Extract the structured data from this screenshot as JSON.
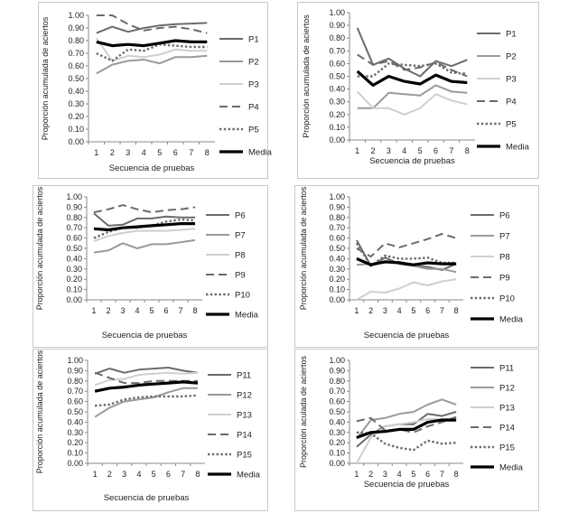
{
  "chart_data": [
    {
      "type": "line",
      "xlabel": "Secuencia de pruebas",
      "ylabel": "Proporción acumulada de aciertos",
      "ylim": [
        0,
        1
      ],
      "yticks": [
        "0.00",
        "0.10",
        "0.20",
        "0.30",
        "0.40",
        "0.50",
        "0.60",
        "0.70",
        "0.80",
        "0.90",
        "1.00"
      ],
      "categories": [
        "1",
        "2",
        "3",
        "4",
        "5",
        "6",
        "7",
        "8"
      ],
      "legend_position": "right",
      "series": [
        {
          "name": "P1",
          "color": "#6b6b6b",
          "style": "solid",
          "values": [
            0.86,
            0.91,
            0.87,
            0.9,
            0.92,
            0.93,
            0.935,
            0.94
          ]
        },
        {
          "name": "P2",
          "color": "#9a9a9a",
          "style": "solid",
          "values": [
            0.54,
            0.61,
            0.64,
            0.65,
            0.62,
            0.67,
            0.67,
            0.68
          ]
        },
        {
          "name": "P3",
          "color": "#cfcfcf",
          "style": "solid",
          "values": [
            0.82,
            0.64,
            0.68,
            0.67,
            0.69,
            0.73,
            0.72,
            0.72
          ]
        },
        {
          "name": "P4",
          "color": "#6b6b6b",
          "style": "dash",
          "values": [
            1.0,
            1.0,
            0.93,
            0.88,
            0.9,
            0.91,
            0.89,
            0.86
          ]
        },
        {
          "name": "P5",
          "color": "#6b6b6b",
          "style": "dot",
          "values": [
            0.7,
            0.64,
            0.73,
            0.72,
            0.77,
            0.76,
            0.75,
            0.75
          ]
        },
        {
          "name": "Media",
          "color": "#000000",
          "style": "bold",
          "values": [
            0.79,
            0.76,
            0.77,
            0.76,
            0.78,
            0.8,
            0.79,
            0.79
          ]
        }
      ]
    },
    {
      "type": "line",
      "xlabel": "Secuencia de pruebas",
      "ylabel": "Proporción acumulada de aciertos",
      "ylim": [
        0,
        1
      ],
      "yticks": [
        "0.00",
        "0.10",
        "0.20",
        "0.30",
        "0.40",
        "0.50",
        "0.60",
        "0.70",
        "0.80",
        "0.90",
        "1.00"
      ],
      "categories": [
        "1",
        "2",
        "3",
        "4",
        "5",
        "6",
        "7",
        "8"
      ],
      "legend_position": "right",
      "series": [
        {
          "name": "P1",
          "color": "#6b6b6b",
          "style": "solid",
          "values": [
            0.88,
            0.59,
            0.64,
            0.56,
            0.5,
            0.62,
            0.58,
            0.63
          ]
        },
        {
          "name": "P2",
          "color": "#9a9a9a",
          "style": "solid",
          "values": [
            0.25,
            0.25,
            0.37,
            0.36,
            0.35,
            0.43,
            0.38,
            0.37
          ]
        },
        {
          "name": "P3",
          "color": "#cfcfcf",
          "style": "solid",
          "values": [
            0.38,
            0.25,
            0.25,
            0.2,
            0.25,
            0.36,
            0.31,
            0.28
          ]
        },
        {
          "name": "P4",
          "color": "#6b6b6b",
          "style": "dash",
          "values": [
            0.67,
            0.59,
            0.62,
            0.55,
            0.57,
            0.61,
            0.55,
            0.5
          ]
        },
        {
          "name": "P5",
          "color": "#6b6b6b",
          "style": "dot",
          "values": [
            0.5,
            0.5,
            0.6,
            0.59,
            0.58,
            0.6,
            0.53,
            0.52
          ]
        },
        {
          "name": "Media",
          "color": "#000000",
          "style": "bold",
          "values": [
            0.54,
            0.43,
            0.5,
            0.46,
            0.44,
            0.51,
            0.46,
            0.45
          ]
        }
      ]
    },
    {
      "type": "line",
      "xlabel": "Secuencia de pruebas",
      "ylabel": "Proporción acumulada de aciertos",
      "ylim": [
        0,
        1
      ],
      "yticks": [
        "0.00",
        "0.10",
        "0.20",
        "0.30",
        "0.40",
        "0.50",
        "0.60",
        "0.70",
        "0.80",
        "0.90",
        "1.00"
      ],
      "categories": [
        "1",
        "2",
        "3",
        "4",
        "5",
        "6",
        "7",
        "8"
      ],
      "legend_position": "right",
      "series": [
        {
          "name": "P6",
          "color": "#6b6b6b",
          "style": "solid",
          "values": [
            0.84,
            0.72,
            0.73,
            0.79,
            0.79,
            0.81,
            0.8,
            0.8
          ]
        },
        {
          "name": "P7",
          "color": "#9a9a9a",
          "style": "solid",
          "values": [
            0.46,
            0.48,
            0.55,
            0.5,
            0.54,
            0.54,
            0.56,
            0.58
          ]
        },
        {
          "name": "P8",
          "color": "#cfcfcf",
          "style": "solid",
          "values": [
            0.57,
            0.62,
            0.65,
            0.67,
            0.67,
            0.67,
            0.68,
            0.69
          ]
        },
        {
          "name": "P9",
          "color": "#6b6b6b",
          "style": "dash",
          "values": [
            0.85,
            0.88,
            0.92,
            0.88,
            0.85,
            0.87,
            0.88,
            0.9
          ]
        },
        {
          "name": "P10",
          "color": "#6b6b6b",
          "style": "dot",
          "values": [
            0.6,
            0.66,
            0.7,
            0.7,
            0.72,
            0.76,
            0.78,
            0.77
          ]
        },
        {
          "name": "Media",
          "color": "#000000",
          "style": "bold",
          "values": [
            0.69,
            0.68,
            0.7,
            0.71,
            0.72,
            0.73,
            0.74,
            0.74
          ]
        }
      ]
    },
    {
      "type": "line",
      "xlabel": "Secuencia de pruebas",
      "ylabel": "Proporción acumulada de aciertos",
      "ylim": [
        0,
        1
      ],
      "yticks": [
        "0.00",
        "0.10",
        "0.20",
        "0.30",
        "0.40",
        "0.50",
        "0.60",
        "0.70",
        "0.80",
        "0.90",
        "1.00"
      ],
      "categories": [
        "1",
        "2",
        "3",
        "4",
        "5",
        "6",
        "7",
        "8"
      ],
      "legend_position": "right",
      "series": [
        {
          "name": "P6",
          "color": "#6b6b6b",
          "style": "solid",
          "values": [
            0.58,
            0.33,
            0.41,
            0.35,
            0.33,
            0.32,
            0.29,
            0.35
          ]
        },
        {
          "name": "P7",
          "color": "#9a9a9a",
          "style": "solid",
          "values": [
            0.34,
            0.35,
            0.36,
            0.37,
            0.33,
            0.3,
            0.3,
            0.27
          ]
        },
        {
          "name": "P8",
          "color": "#cfcfcf",
          "style": "solid",
          "values": [
            0.0,
            0.08,
            0.07,
            0.11,
            0.17,
            0.14,
            0.18,
            0.2
          ]
        },
        {
          "name": "P9",
          "color": "#6b6b6b",
          "style": "dash",
          "values": [
            0.5,
            0.42,
            0.55,
            0.51,
            0.55,
            0.59,
            0.64,
            0.6
          ]
        },
        {
          "name": "P10",
          "color": "#6b6b6b",
          "style": "dot",
          "values": [
            0.55,
            0.33,
            0.43,
            0.4,
            0.4,
            0.41,
            0.36,
            0.36
          ]
        },
        {
          "name": "Media",
          "color": "#000000",
          "style": "bold",
          "values": [
            0.4,
            0.34,
            0.37,
            0.36,
            0.34,
            0.36,
            0.35,
            0.35
          ]
        }
      ]
    },
    {
      "type": "line",
      "xlabel": "Secuencia de pruebas",
      "ylabel": "Proporción acumulada de aciertos",
      "ylim": [
        0,
        1
      ],
      "yticks": [
        "0.00",
        "0.10",
        "0.20",
        "0.30",
        "0.40",
        "0.50",
        "0.60",
        "0.70",
        "0.80",
        "0.90",
        "1.00"
      ],
      "categories": [
        "1",
        "2",
        "3",
        "4",
        "5",
        "6",
        "7",
        "8"
      ],
      "legend_position": "right",
      "series": [
        {
          "name": "P11",
          "color": "#6b6b6b",
          "style": "solid",
          "values": [
            0.87,
            0.92,
            0.88,
            0.91,
            0.92,
            0.93,
            0.9,
            0.88
          ]
        },
        {
          "name": "P12",
          "color": "#9a9a9a",
          "style": "solid",
          "values": [
            0.45,
            0.54,
            0.6,
            0.62,
            0.64,
            0.69,
            0.73,
            0.73
          ]
        },
        {
          "name": "P13",
          "color": "#cfcfcf",
          "style": "solid",
          "values": [
            0.76,
            0.81,
            0.82,
            0.86,
            0.87,
            0.88,
            0.87,
            0.88
          ]
        },
        {
          "name": "P14",
          "color": "#6b6b6b",
          "style": "dash",
          "values": [
            0.88,
            0.83,
            0.78,
            0.78,
            0.8,
            0.8,
            0.8,
            0.8
          ]
        },
        {
          "name": "P15",
          "color": "#6b6b6b",
          "style": "dot",
          "values": [
            0.56,
            0.57,
            0.62,
            0.64,
            0.65,
            0.65,
            0.65,
            0.66
          ]
        },
        {
          "name": "Media",
          "color": "#000000",
          "style": "bold",
          "values": [
            0.7,
            0.73,
            0.74,
            0.76,
            0.77,
            0.78,
            0.79,
            0.78
          ]
        }
      ]
    },
    {
      "type": "line",
      "xlabel": "Secuencia de pruebas",
      "ylabel": "Proporción aculada de aciertos",
      "ylim": [
        0,
        1
      ],
      "yticks": [
        "0.00",
        "0.10",
        "0.20",
        "0.30",
        "0.40",
        "0.50",
        "0.60",
        "0.70",
        "0.80",
        "0.90",
        "1.00"
      ],
      "categories": [
        "1",
        "2",
        "3",
        "4",
        "5",
        "6",
        "7",
        "8"
      ],
      "legend_position": "right",
      "series": [
        {
          "name": "P11",
          "color": "#6b6b6b",
          "style": "solid",
          "values": [
            0.16,
            0.28,
            0.36,
            0.38,
            0.38,
            0.48,
            0.46,
            0.5
          ]
        },
        {
          "name": "P12",
          "color": "#9a9a9a",
          "style": "solid",
          "values": [
            0.24,
            0.42,
            0.44,
            0.48,
            0.5,
            0.57,
            0.62,
            0.57
          ]
        },
        {
          "name": "P13",
          "color": "#cfcfcf",
          "style": "solid",
          "values": [
            0.0,
            0.25,
            0.36,
            0.38,
            0.4,
            0.43,
            0.43,
            0.44
          ]
        },
        {
          "name": "P14",
          "color": "#6b6b6b",
          "style": "dash",
          "values": [
            0.41,
            0.44,
            0.32,
            0.33,
            0.3,
            0.36,
            0.4,
            0.45
          ]
        },
        {
          "name": "P15",
          "color": "#6b6b6b",
          "style": "dot",
          "values": [
            0.3,
            0.29,
            0.19,
            0.15,
            0.13,
            0.22,
            0.19,
            0.2
          ]
        },
        {
          "name": "Media",
          "color": "#000000",
          "style": "bold",
          "values": [
            0.25,
            0.3,
            0.31,
            0.33,
            0.33,
            0.4,
            0.42,
            0.42
          ]
        }
      ]
    }
  ]
}
